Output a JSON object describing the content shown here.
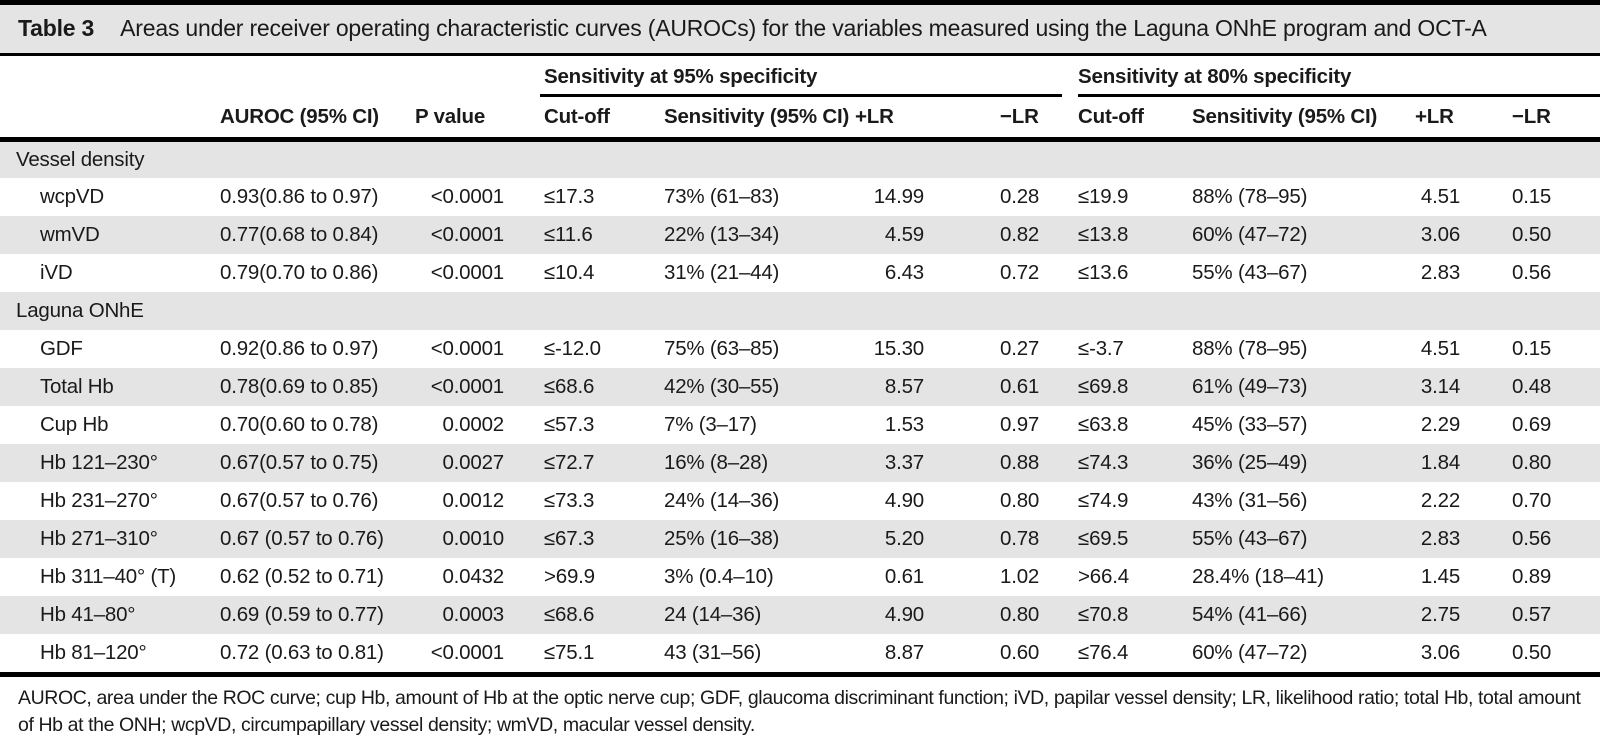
{
  "title": {
    "label": "Table 3",
    "text": "Areas under receiver operating characteristic curves (AUROCs) for the variables measured using the Laguna ONhE program and OCT-A"
  },
  "table": {
    "group_headers": [
      "Sensitivity at 95% specificity",
      "Sensitivity at 80% specificity"
    ],
    "columns": [
      "",
      "AUROC (95% CI)",
      "P value",
      "Cut-off",
      "Sensitivity (95% CI)",
      "+LR",
      "−LR",
      "Cut-off",
      "Sensitivity (95% CI)",
      "+LR",
      "−LR"
    ],
    "rows": [
      {
        "type": "section",
        "label": "Vessel density"
      },
      {
        "type": "data",
        "label": "wcpVD",
        "auroc": "0.93(0.86 to 0.97)",
        "p": "<0.0001",
        "cutoff95": "≤17.3",
        "sens95": "73% (61–83)",
        "plr95": "14.99",
        "nlr95": "0.28",
        "cutoff80": "≤19.9",
        "sens80": "88% (78–95)",
        "plr80": "4.51",
        "nlr80": "0.15"
      },
      {
        "type": "data",
        "label": "wmVD",
        "auroc": "0.77(0.68 to 0.84)",
        "p": "<0.0001",
        "cutoff95": "≤11.6",
        "sens95": "22% (13–34)",
        "plr95": "4.59",
        "nlr95": "0.82",
        "cutoff80": "≤13.8",
        "sens80": "60% (47–72)",
        "plr80": "3.06",
        "nlr80": "0.50"
      },
      {
        "type": "data",
        "label": "iVD",
        "auroc": "0.79(0.70 to 0.86)",
        "p": "<0.0001",
        "cutoff95": "≤10.4",
        "sens95": "31% (21–44)",
        "plr95": "6.43",
        "nlr95": "0.72",
        "cutoff80": "≤13.6",
        "sens80": "55% (43–67)",
        "plr80": "2.83",
        "nlr80": "0.56"
      },
      {
        "type": "section",
        "label": "Laguna ONhE"
      },
      {
        "type": "data",
        "label": "GDF",
        "auroc": "0.92(0.86 to 0.97)",
        "p": "<0.0001",
        "cutoff95": "≤-12.0",
        "sens95": "75% (63–85)",
        "plr95": "15.30",
        "nlr95": "0.27",
        "cutoff80": "≤-3.7",
        "sens80": "88% (78–95)",
        "plr80": "4.51",
        "nlr80": "0.15"
      },
      {
        "type": "data",
        "label": "Total Hb",
        "auroc": "0.78(0.69 to 0.85)",
        "p": "<0.0001",
        "cutoff95": "≤68.6",
        "sens95": "42% (30–55)",
        "plr95": "8.57",
        "nlr95": "0.61",
        "cutoff80": "≤69.8",
        "sens80": "61% (49–73)",
        "plr80": "3.14",
        "nlr80": "0.48"
      },
      {
        "type": "data",
        "label": "Cup Hb",
        "auroc": "0.70(0.60 to 0.78)",
        "p": "0.0002",
        "cutoff95": "≤57.3",
        "sens95": "7% (3–17)",
        "plr95": "1.53",
        "nlr95": "0.97",
        "cutoff80": "≤63.8",
        "sens80": "45% (33–57)",
        "plr80": "2.29",
        "nlr80": "0.69"
      },
      {
        "type": "data",
        "label": "Hb 121–230°",
        "auroc": "0.67(0.57 to 0.75)",
        "p": "0.0027",
        "cutoff95": "≤72.7",
        "sens95": "16% (8–28)",
        "plr95": "3.37",
        "nlr95": "0.88",
        "cutoff80": "≤74.3",
        "sens80": "36% (25–49)",
        "plr80": "1.84",
        "nlr80": "0.80"
      },
      {
        "type": "data",
        "label": "Hb 231–270°",
        "auroc": "0.67(0.57 to 0.76)",
        "p": "0.0012",
        "cutoff95": "≤73.3",
        "sens95": "24% (14–36)",
        "plr95": "4.90",
        "nlr95": "0.80",
        "cutoff80": "≤74.9",
        "sens80": "43% (31–56)",
        "plr80": "2.22",
        "nlr80": "0.70"
      },
      {
        "type": "data",
        "label": "Hb 271–310°",
        "auroc": "0.67 (0.57 to 0.76)",
        "p": "0.0010",
        "cutoff95": "≤67.3",
        "sens95": "25% (16–38)",
        "plr95": "5.20",
        "nlr95": "0.78",
        "cutoff80": "≤69.5",
        "sens80": "55% (43–67)",
        "plr80": "2.83",
        "nlr80": "0.56"
      },
      {
        "type": "data",
        "label": "Hb 311–40° (T)",
        "auroc": "0.62 (0.52 to 0.71)",
        "p": "0.0432",
        "cutoff95": ">69.9",
        "sens95": "3% (0.4–10)",
        "plr95": "0.61",
        "nlr95": "1.02",
        "cutoff80": ">66.4",
        "sens80": "28.4% (18–41)",
        "plr80": "1.45",
        "nlr80": "0.89"
      },
      {
        "type": "data",
        "label": "Hb 41–80°",
        "auroc": "0.69 (0.59 to 0.77)",
        "p": "0.0003",
        "cutoff95": "≤68.6",
        "sens95": "24 (14–36)",
        "plr95": "4.90",
        "nlr95": "0.80",
        "cutoff80": "≤70.8",
        "sens80": "54% (41–66)",
        "plr80": "2.75",
        "nlr80": "0.57"
      },
      {
        "type": "data",
        "label": "Hb 81–120°",
        "auroc": "0.72 (0.63 to 0.81)",
        "p": "<0.0001",
        "cutoff95": "≤75.1",
        "sens95": "43 (31–56)",
        "plr95": "8.87",
        "nlr95": "0.60",
        "cutoff80": "≤76.4",
        "sens80": "60% (47–72)",
        "plr80": "3.06",
        "nlr80": "0.50"
      }
    ]
  },
  "footnote": {
    "text": "AUROC, area under the ROC curve; cup Hb, amount of Hb at the optic nerve cup; GDF, glaucoma discriminant function; iVD, papilar vessel density; LR, likelihood ratio; total Hb, total amount of Hb at the ONH; wcpVD, circumpapillary vessel density; wmVD, macular vessel density."
  }
}
